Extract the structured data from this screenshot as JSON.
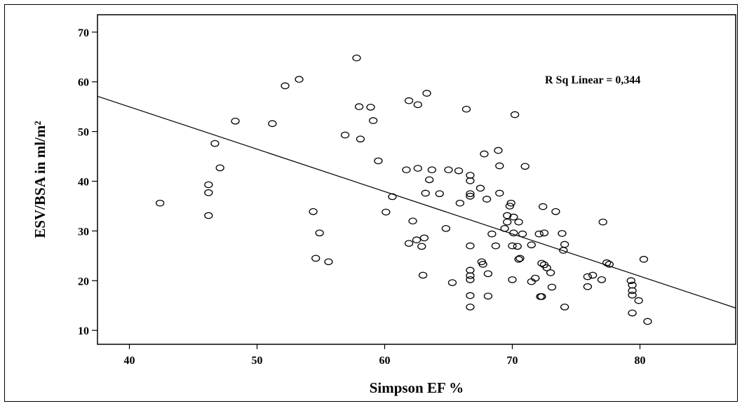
{
  "chart_data": {
    "type": "scatter",
    "xlabel": "Simpson EF %",
    "ylabel": "ESV/BSA in ml/m²",
    "xlim": [
      37.5,
      87.5
    ],
    "ylim": [
      7.2,
      73.5
    ],
    "xticks": [
      "40",
      "50",
      "60",
      "70",
      "80"
    ],
    "yticks": [
      "10",
      "20",
      "30",
      "40",
      "50",
      "60",
      "70"
    ],
    "annotation": "R Sq Linear = 0,344",
    "fit_line": {
      "x": [
        37.5,
        87.5
      ],
      "y": [
        57.1,
        14.5
      ]
    },
    "marker": "open-circle",
    "grid": false,
    "points": [
      [
        42.4,
        35.6
      ],
      [
        46.2,
        39.3
      ],
      [
        46.2,
        37.7
      ],
      [
        46.2,
        33.1
      ],
      [
        46.7,
        47.6
      ],
      [
        47.1,
        42.7
      ],
      [
        48.3,
        52.1
      ],
      [
        51.2,
        51.6
      ],
      [
        52.2,
        59.2
      ],
      [
        53.3,
        60.5
      ],
      [
        54.4,
        33.9
      ],
      [
        54.6,
        24.5
      ],
      [
        54.9,
        29.6
      ],
      [
        55.6,
        23.8
      ],
      [
        56.9,
        49.3
      ],
      [
        57.8,
        64.8
      ],
      [
        58.0,
        55.0
      ],
      [
        58.1,
        48.5
      ],
      [
        58.9,
        54.9
      ],
      [
        59.1,
        52.2
      ],
      [
        59.5,
        44.1
      ],
      [
        60.1,
        33.8
      ],
      [
        60.6,
        36.9
      ],
      [
        61.7,
        42.3
      ],
      [
        61.9,
        56.2
      ],
      [
        61.9,
        27.5
      ],
      [
        62.2,
        32.0
      ],
      [
        62.5,
        28.2
      ],
      [
        62.6,
        42.6
      ],
      [
        62.6,
        55.4
      ],
      [
        62.9,
        26.9
      ],
      [
        63.0,
        21.1
      ],
      [
        63.1,
        28.6
      ],
      [
        63.2,
        37.6
      ],
      [
        63.3,
        57.7
      ],
      [
        63.5,
        40.3
      ],
      [
        63.7,
        42.3
      ],
      [
        64.3,
        37.5
      ],
      [
        64.8,
        30.5
      ],
      [
        65.0,
        42.3
      ],
      [
        65.3,
        19.6
      ],
      [
        65.8,
        42.1
      ],
      [
        65.9,
        35.6
      ],
      [
        66.4,
        54.5
      ],
      [
        66.7,
        41.2
      ],
      [
        66.7,
        40.1
      ],
      [
        66.7,
        37.5
      ],
      [
        66.7,
        37.0
      ],
      [
        66.7,
        27.0
      ],
      [
        66.7,
        22.1
      ],
      [
        66.7,
        21.0
      ],
      [
        66.7,
        20.2
      ],
      [
        66.7,
        17.0
      ],
      [
        66.7,
        14.7
      ],
      [
        67.5,
        38.6
      ],
      [
        67.6,
        23.8
      ],
      [
        67.7,
        23.3
      ],
      [
        67.8,
        45.5
      ],
      [
        68.0,
        36.4
      ],
      [
        68.1,
        21.4
      ],
      [
        68.1,
        16.9
      ],
      [
        68.4,
        29.4
      ],
      [
        68.7,
        27.0
      ],
      [
        68.9,
        46.2
      ],
      [
        69.0,
        43.1
      ],
      [
        69.0,
        37.6
      ],
      [
        69.4,
        30.5
      ],
      [
        69.6,
        33.1
      ],
      [
        69.6,
        31.8
      ],
      [
        69.8,
        35.0
      ],
      [
        69.9,
        35.6
      ],
      [
        70.0,
        27.0
      ],
      [
        70.0,
        20.2
      ],
      [
        70.1,
        29.6
      ],
      [
        70.1,
        32.8
      ],
      [
        70.2,
        53.4
      ],
      [
        70.4,
        26.9
      ],
      [
        70.5,
        31.8
      ],
      [
        70.5,
        24.3
      ],
      [
        70.6,
        24.5
      ],
      [
        70.8,
        29.4
      ],
      [
        71.0,
        43.0
      ],
      [
        71.5,
        27.2
      ],
      [
        71.5,
        19.8
      ],
      [
        71.8,
        20.5
      ],
      [
        72.1,
        29.4
      ],
      [
        72.2,
        16.8
      ],
      [
        72.3,
        16.8
      ],
      [
        72.3,
        23.5
      ],
      [
        72.4,
        34.9
      ],
      [
        72.5,
        23.2
      ],
      [
        72.5,
        29.6
      ],
      [
        72.7,
        22.6
      ],
      [
        73.0,
        21.6
      ],
      [
        73.1,
        18.7
      ],
      [
        73.4,
        33.9
      ],
      [
        73.9,
        29.5
      ],
      [
        74.0,
        26.1
      ],
      [
        74.1,
        27.3
      ],
      [
        74.1,
        14.7
      ],
      [
        75.9,
        20.8
      ],
      [
        75.9,
        18.8
      ],
      [
        76.3,
        21.1
      ],
      [
        77.0,
        20.2
      ],
      [
        77.1,
        31.8
      ],
      [
        77.4,
        23.6
      ],
      [
        77.6,
        23.3
      ],
      [
        79.3,
        20.0
      ],
      [
        79.4,
        19.1
      ],
      [
        79.4,
        18.0
      ],
      [
        79.4,
        17.1
      ],
      [
        79.4,
        13.5
      ],
      [
        79.9,
        16.0
      ],
      [
        80.3,
        24.3
      ],
      [
        80.6,
        11.8
      ]
    ]
  }
}
